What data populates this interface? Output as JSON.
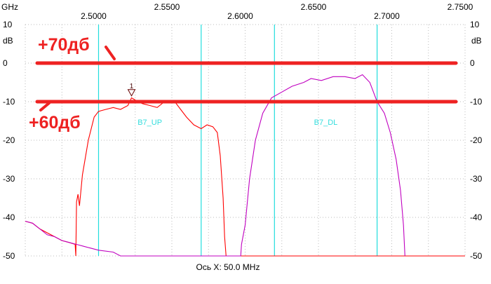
{
  "chart_data": {
    "type": "line",
    "x_unit": "GHz",
    "y_unit": "dB",
    "xlim": [
      2.45,
      2.75
    ],
    "ylim": [
      -50,
      10
    ],
    "x_ticks": [
      "2.5000",
      "2.5500",
      "2.6000",
      "2.6500",
      "2.7000",
      "2.7500"
    ],
    "x_tick_values": [
      2.5,
      2.55,
      2.6,
      2.65,
      2.7,
      2.75
    ],
    "y_ticks": [
      10,
      0,
      -10,
      -20,
      -30,
      -40,
      -50
    ],
    "grid": true,
    "xlabel": "Ось X: 50.0 MHz",
    "band_lines": [
      2.5,
      2.57,
      2.62,
      2.69
    ],
    "band_labels": [
      {
        "text": "B7_UP",
        "x": 2.535,
        "y": -16
      },
      {
        "text": "B7_DL",
        "x": 2.655,
        "y": -16
      }
    ],
    "marker": {
      "label": "1",
      "x": 2.5225,
      "y": -8.5
    },
    "series": [
      {
        "name": "B7_UP",
        "color": "#ff0000",
        "points": [
          [
            2.45,
            -41
          ],
          [
            2.455,
            -41.5
          ],
          [
            2.46,
            -43
          ],
          [
            2.465,
            -44
          ],
          [
            2.47,
            -45
          ],
          [
            2.475,
            -46
          ],
          [
            2.48,
            -46.5
          ],
          [
            2.484,
            -47
          ],
          [
            2.4845,
            -50
          ],
          [
            2.485,
            -36
          ],
          [
            2.486,
            -34
          ],
          [
            2.487,
            -37
          ],
          [
            2.489,
            -29
          ],
          [
            2.493,
            -20
          ],
          [
            2.497,
            -14
          ],
          [
            2.5,
            -12.5
          ],
          [
            2.505,
            -12
          ],
          [
            2.51,
            -11.5
          ],
          [
            2.515,
            -12
          ],
          [
            2.52,
            -11
          ],
          [
            2.5225,
            -9
          ],
          [
            2.527,
            -10
          ],
          [
            2.53,
            -10.5
          ],
          [
            2.535,
            -11
          ],
          [
            2.54,
            -11.5
          ],
          [
            2.545,
            -10
          ],
          [
            2.552,
            -10
          ],
          [
            2.556,
            -12
          ],
          [
            2.56,
            -14
          ],
          [
            2.565,
            -16
          ],
          [
            2.57,
            -17
          ],
          [
            2.574,
            -16
          ],
          [
            2.578,
            -16.5
          ],
          [
            2.581,
            -18
          ],
          [
            2.583,
            -24
          ],
          [
            2.585,
            -35
          ],
          [
            2.586,
            -45
          ],
          [
            2.587,
            -50
          ],
          [
            2.75,
            -50
          ]
        ]
      },
      {
        "name": "B7_DL",
        "color": "#c000c0",
        "points": [
          [
            2.45,
            -41
          ],
          [
            2.455,
            -41.5
          ],
          [
            2.46,
            -43
          ],
          [
            2.465,
            -44.5
          ],
          [
            2.47,
            -45
          ],
          [
            2.475,
            -46
          ],
          [
            2.48,
            -46.5
          ],
          [
            2.485,
            -47
          ],
          [
            2.49,
            -47.5
          ],
          [
            2.5,
            -48.5
          ],
          [
            2.51,
            -49
          ],
          [
            2.515,
            -50
          ],
          [
            2.597,
            -50
          ],
          [
            2.5975,
            -47
          ],
          [
            2.6,
            -42
          ],
          [
            2.603,
            -30
          ],
          [
            2.607,
            -20
          ],
          [
            2.612,
            -13
          ],
          [
            2.618,
            -9
          ],
          [
            2.625,
            -7.5
          ],
          [
            2.632,
            -6
          ],
          [
            2.64,
            -5
          ],
          [
            2.645,
            -4
          ],
          [
            2.652,
            -4.5
          ],
          [
            2.66,
            -3.5
          ],
          [
            2.668,
            -3.5
          ],
          [
            2.675,
            -4
          ],
          [
            2.68,
            -3
          ],
          [
            2.685,
            -5
          ],
          [
            2.69,
            -10
          ],
          [
            2.695,
            -13
          ],
          [
            2.699,
            -18
          ],
          [
            2.703,
            -25
          ],
          [
            2.706,
            -33
          ],
          [
            2.708,
            -42
          ],
          [
            2.709,
            -50
          ]
        ]
      }
    ]
  },
  "annotations": {
    "line_70_label": "+70дб",
    "line_60_label": "+60дб",
    "line_70_level": 0,
    "line_60_level": -10,
    "color": "#ee2222"
  },
  "axis": {
    "x_unit_label": "GHz",
    "y_unit_label": "dB"
  }
}
